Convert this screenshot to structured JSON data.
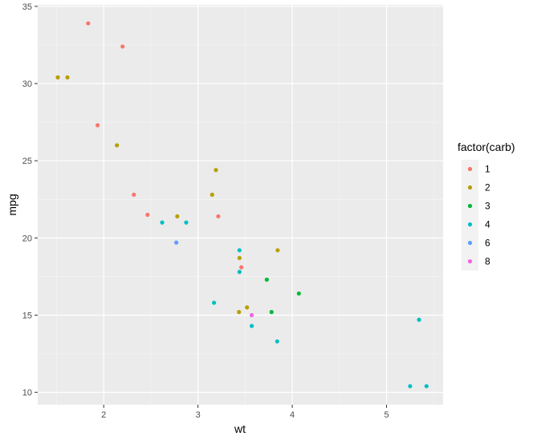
{
  "chart_data": {
    "type": "scatter",
    "xlabel": "wt",
    "ylabel": "mpg",
    "xlim": [
      1.3,
      5.6
    ],
    "ylim": [
      9.2,
      35.1
    ],
    "x_ticks": [
      2,
      3,
      4,
      5
    ],
    "y_ticks": [
      10,
      15,
      20,
      25,
      30,
      35
    ],
    "grid": true,
    "legend": {
      "title": "factor(carb)",
      "placement": "right",
      "entries": [
        {
          "label": "1",
          "color": "#F8766D"
        },
        {
          "label": "2",
          "color": "#B79F00"
        },
        {
          "label": "3",
          "color": "#00BA38"
        },
        {
          "label": "4",
          "color": "#00BFC4"
        },
        {
          "label": "6",
          "color": "#619CFF"
        },
        {
          "label": "8",
          "color": "#F564E3"
        }
      ]
    },
    "series": [
      {
        "name": "1",
        "color": "#F8766D",
        "points": [
          {
            "x": 1.835,
            "y": 33.9
          },
          {
            "x": 2.2,
            "y": 32.4
          },
          {
            "x": 1.935,
            "y": 27.3
          },
          {
            "x": 2.32,
            "y": 22.8
          },
          {
            "x": 2.465,
            "y": 21.5
          },
          {
            "x": 3.215,
            "y": 21.4
          },
          {
            "x": 3.46,
            "y": 18.1
          }
        ]
      },
      {
        "name": "2",
        "color": "#B79F00",
        "points": [
          {
            "x": 1.513,
            "y": 30.4
          },
          {
            "x": 1.615,
            "y": 30.4
          },
          {
            "x": 2.14,
            "y": 26.0
          },
          {
            "x": 3.19,
            "y": 24.4
          },
          {
            "x": 3.15,
            "y": 22.8
          },
          {
            "x": 2.78,
            "y": 21.4
          },
          {
            "x": 3.44,
            "y": 18.7
          },
          {
            "x": 3.845,
            "y": 19.2
          },
          {
            "x": 3.52,
            "y": 15.5
          },
          {
            "x": 3.435,
            "y": 15.2
          }
        ]
      },
      {
        "name": "3",
        "color": "#00BA38",
        "points": [
          {
            "x": 4.07,
            "y": 16.4
          },
          {
            "x": 3.73,
            "y": 17.3
          },
          {
            "x": 3.78,
            "y": 15.2
          }
        ]
      },
      {
        "name": "4",
        "color": "#00BFC4",
        "points": [
          {
            "x": 2.62,
            "y": 21.0
          },
          {
            "x": 2.875,
            "y": 21.0
          },
          {
            "x": 3.44,
            "y": 19.2
          },
          {
            "x": 3.44,
            "y": 17.8
          },
          {
            "x": 3.17,
            "y": 15.8
          },
          {
            "x": 3.57,
            "y": 14.3
          },
          {
            "x": 3.84,
            "y": 13.3
          },
          {
            "x": 5.345,
            "y": 14.7
          },
          {
            "x": 5.25,
            "y": 10.4
          },
          {
            "x": 5.424,
            "y": 10.4
          }
        ]
      },
      {
        "name": "6",
        "color": "#619CFF",
        "points": [
          {
            "x": 2.77,
            "y": 19.7
          }
        ]
      },
      {
        "name": "8",
        "color": "#F564E3",
        "points": [
          {
            "x": 3.57,
            "y": 15.0
          }
        ]
      }
    ]
  }
}
